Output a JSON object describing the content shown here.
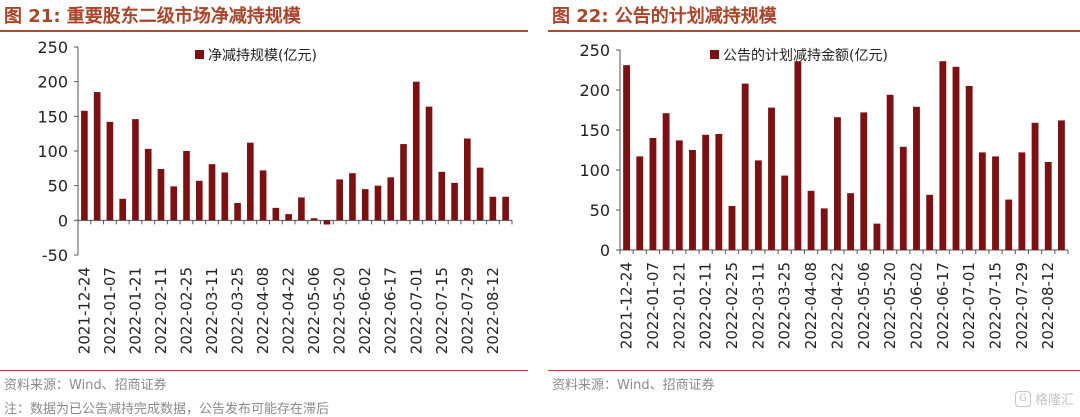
{
  "figures": [
    {
      "title": "图 21:  重要股东二级市场净减持规模",
      "source": "资料来源：Wind、招商证券"
    },
    {
      "title": "图 22:  公告的计划减持规模",
      "source": "资料来源：Wind、招商证券"
    }
  ],
  "note": "注：数据为已公告减持完成数据，公告发布可能存在滞后",
  "watermark": {
    "text": "格隆汇",
    "icon": "gelonghui-logo-icon"
  },
  "colors": {
    "bar": "#7b1113",
    "title": "#a8442a",
    "rule": "#b6472a"
  },
  "chart_data": [
    {
      "type": "bar",
      "title": "",
      "legend": "净减持规模(亿元)",
      "legend_position": "top-center",
      "grid": false,
      "ylim": [
        -50,
        250
      ],
      "yticks": [
        -50,
        0,
        50,
        100,
        150,
        200,
        250
      ],
      "tick_labels_x": [
        "2021-12-24",
        "2022-01-07",
        "2022-01-21",
        "2022-02-11",
        "2022-02-25",
        "2022-03-11",
        "2022-03-25",
        "2022-04-08",
        "2022-04-22",
        "2022-05-06",
        "2022-05-20",
        "2022-06-02",
        "2022-06-17",
        "2022-07-01",
        "2022-07-15",
        "2022-07-29",
        "2022-08-12"
      ],
      "values": [
        158,
        185,
        142,
        31,
        146,
        103,
        74,
        49,
        100,
        57,
        81,
        69,
        25,
        112,
        72,
        18,
        9,
        33,
        3,
        -6,
        59,
        68,
        45,
        50,
        62,
        110,
        200,
        164,
        70,
        54,
        118,
        76,
        34,
        34
      ]
    },
    {
      "type": "bar",
      "title": "",
      "legend": "公告的计划减持金额(亿元)",
      "legend_position": "top-center",
      "grid": false,
      "ylim": [
        0,
        250
      ],
      "yticks": [
        0,
        50,
        100,
        150,
        200,
        250
      ],
      "tick_labels_x": [
        "2021-12-24",
        "2022-01-07",
        "2022-01-21",
        "2022-02-11",
        "2022-02-25",
        "2022-03-11",
        "2022-03-25",
        "2022-04-08",
        "2022-04-22",
        "2022-05-06",
        "2022-05-20",
        "2022-06-02",
        "2022-06-17",
        "2022-07-01",
        "2022-07-15",
        "2022-07-29",
        "2022-08-12"
      ],
      "values": [
        231,
        117,
        140,
        171,
        137,
        125,
        144,
        145,
        55,
        208,
        112,
        178,
        93,
        236,
        74,
        52,
        166,
        71,
        172,
        33,
        194,
        129,
        179,
        69,
        236,
        229,
        205,
        122,
        117,
        63,
        122,
        159,
        110,
        162
      ]
    }
  ]
}
